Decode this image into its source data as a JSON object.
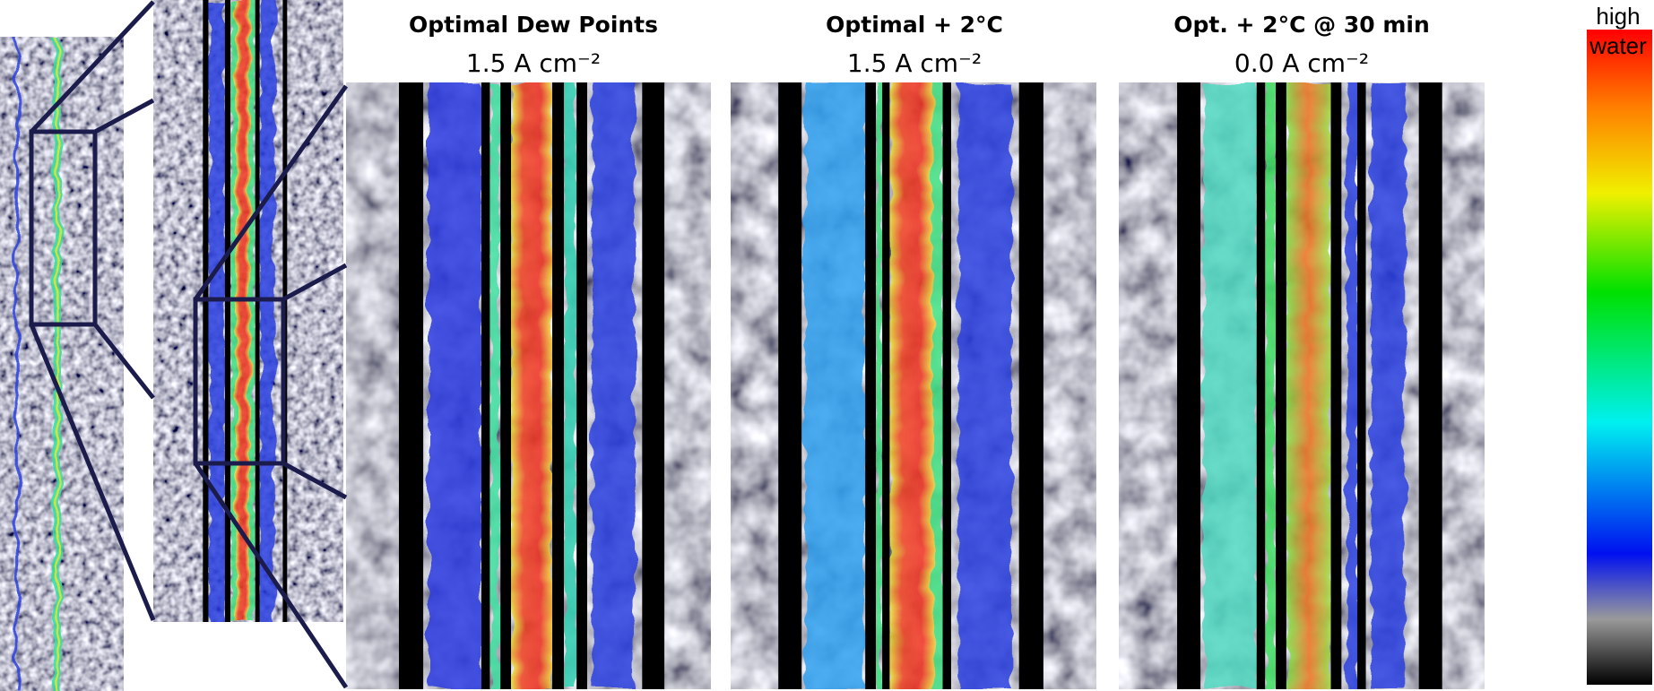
{
  "panels": [
    {
      "title": "Optimal Dew Points",
      "subtitle": "1.5 A cm⁻²"
    },
    {
      "title": "Optimal + 2°C",
      "subtitle": "1.5 A cm⁻²"
    },
    {
      "title": "Opt. + 2°C @ 30 min",
      "subtitle": "0.0 A cm⁻²"
    }
  ],
  "colorbar": {
    "label": [
      "high",
      "water"
    ]
  }
}
